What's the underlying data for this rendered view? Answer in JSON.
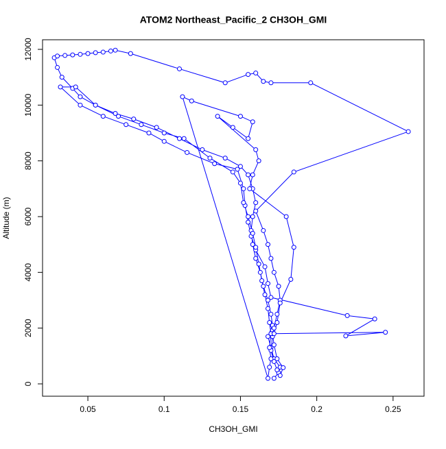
{
  "chart_data": {
    "type": "line",
    "title": "ATOM2 Northeast_Pacific_2 CH3OH_GMI",
    "x_label": "CH3OH_GMI",
    "y_label": "Altitude (m)",
    "color": "#0000ff",
    "xlim": [
      0.0203,
      0.2703
    ],
    "ylim": [
      -443,
      12344
    ],
    "xticks": [
      0.05,
      0.1,
      0.15,
      0.2,
      0.25
    ],
    "yticks": [
      0,
      2000,
      4000,
      6000,
      8000,
      10000,
      12000
    ],
    "x": [
      0.172,
      0.175,
      0.176,
      0.172,
      0.17,
      0.168,
      0.171,
      0.17,
      0.168,
      0.165,
      0.163,
      0.16,
      0.158,
      0.157,
      0.158,
      0.16,
      0.158,
      0.155,
      0.15,
      0.14,
      0.125,
      0.11,
      0.095,
      0.08,
      0.068,
      0.055,
      0.045,
      0.04,
      0.033,
      0.03,
      0.028,
      0.03,
      0.035,
      0.04,
      0.045,
      0.05,
      0.055,
      0.06,
      0.065,
      0.068,
      0.078,
      0.11,
      0.14,
      0.155,
      0.16,
      0.165,
      0.17,
      0.196,
      0.26,
      0.185,
      0.16,
      0.165,
      0.168,
      0.17,
      0.172,
      0.175,
      0.176,
      0.174,
      0.172,
      0.171,
      0.17,
      0.172,
      0.174,
      0.176,
      0.178,
      0.174,
      0.172,
      0.171,
      0.245,
      0.219,
      0.238,
      0.22,
      0.17,
      0.168,
      0.166,
      0.16,
      0.157,
      0.155,
      0.153,
      0.152,
      0.148,
      0.133,
      0.115,
      0.1,
      0.09,
      0.075,
      0.06,
      0.045,
      0.032,
      0.042,
      0.055,
      0.07,
      0.085,
      0.1,
      0.113,
      0.13,
      0.145,
      0.15,
      0.152,
      0.155,
      0.158,
      0.16,
      0.162,
      0.164,
      0.166,
      0.168,
      0.169,
      0.17,
      0.169,
      0.17,
      0.169,
      0.168,
      0.112,
      0.118,
      0.15,
      0.158,
      0.155,
      0.145,
      0.135,
      0.16,
      0.162,
      0.158,
      0.156,
      0.18,
      0.185,
      0.183,
      0.176,
      0.174,
      0.172
    ],
    "values": [
      200,
      400,
      600,
      900,
      1300,
      1700,
      2100,
      2500,
      3000,
      3500,
      4000,
      4500,
      5000,
      5500,
      6000,
      6500,
      7000,
      7500,
      7800,
      8100,
      8400,
      8800,
      9200,
      9500,
      9700,
      10000,
      10300,
      10600,
      11000,
      11350,
      11700,
      11760,
      11780,
      11800,
      11820,
      11850,
      11880,
      11900,
      11940,
      11970,
      11850,
      11300,
      10800,
      11100,
      11150,
      10850,
      10800,
      10800,
      9050,
      7600,
      6200,
      5500,
      5000,
      4500,
      4000,
      3500,
      3000,
      2500,
      2000,
      1700,
      1200,
      800,
      500,
      300,
      580,
      900,
      1400,
      1800,
      1850,
      1720,
      2330,
      2450,
      3100,
      3600,
      4200,
      4800,
      5300,
      5800,
      6400,
      7000,
      7700,
      7900,
      8300,
      8700,
      9000,
      9300,
      9600,
      10000,
      10650,
      10650,
      10000,
      9600,
      9300,
      9000,
      8800,
      8100,
      7600,
      7200,
      6500,
      6000,
      5400,
      4900,
      4300,
      3700,
      3200,
      2700,
      2200,
      1800,
      1300,
      900,
      600,
      200,
      10300,
      10150,
      9600,
      9400,
      8800,
      9200,
      9600,
      8400,
      8000,
      7500,
      7000,
      6000,
      4900,
      3750,
      2900,
      2200,
      1800
    ]
  }
}
